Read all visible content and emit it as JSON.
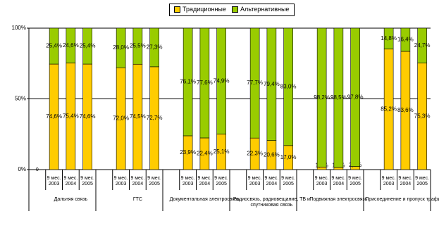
{
  "chart_data": {
    "type": "stacked_bar_percent",
    "categories": [
      "0",
      "9 мес. 2003",
      "9 мес. 2004",
      "9 мес. 2005",
      null,
      "9 мес. 2003",
      "9 мес. 2004",
      "9 мес. 2005",
      null,
      "9 мес. 2003",
      "9 мес. 2004",
      "9 мес. 2005",
      null,
      "9 мес. 2003",
      "9 мес. 2004",
      "9 мес. 2005",
      null,
      "9 мес. 2003",
      "9 мес. 2004",
      "9 мес. 2005",
      null,
      "9 мес. 2003",
      "9 мес. 2004",
      "9 мес. 2005"
    ],
    "groups": [
      "Дальняя связь",
      "ГТС",
      "Документальная электросвязь",
      "Радиосвязь, радиовещание, ТВ и спутниковая связь",
      "Подвижная электросвязь",
      "Присоединение и пропуск трафика"
    ],
    "series": [
      {
        "name": "Традиционные",
        "color": "#ffcc00",
        "values": [
          null,
          74.6,
          75.4,
          74.6,
          null,
          72.0,
          74.5,
          72.7,
          null,
          23.9,
          22.4,
          25.1,
          null,
          22.3,
          20.6,
          17.0,
          null,
          1.8,
          1.5,
          2.2,
          null,
          85.2,
          83.6,
          75.3
        ],
        "value_labels": [
          null,
          "74,6%",
          "75,4%",
          "74,6%",
          null,
          "72,0%",
          "74,5%",
          "72,7%",
          null,
          "23,9%",
          "22,4%",
          "25,1%",
          null,
          "22,3%",
          "20,6%",
          "17,0%",
          null,
          "1,8%",
          "1,5%",
          "2,2%",
          null,
          "85,2%",
          "83,6%",
          "75,3%"
        ]
      },
      {
        "name": "Альтернативные",
        "color": "#99cc00",
        "values": [
          null,
          25.4,
          24.6,
          25.4,
          null,
          28.0,
          25.5,
          27.3,
          null,
          76.1,
          77.6,
          74.9,
          null,
          77.7,
          79.4,
          83.0,
          null,
          98.2,
          98.5,
          97.8,
          null,
          14.8,
          16.4,
          24.7
        ],
        "value_labels": [
          null,
          "25,4%",
          "24,6%",
          "25,4%",
          null,
          "28,0%",
          "25,5%",
          "27,3%",
          null,
          "76,1%",
          "77,6%",
          "74,9%",
          null,
          "77,7%",
          "79,4%",
          "83,0%",
          null,
          "98,2%",
          "98,5%",
          "97,8%",
          null,
          "14,8%",
          "16,4%",
          "24,7%"
        ]
      }
    ],
    "ylim": [
      0,
      100
    ],
    "yticks": [
      {
        "value": 0,
        "label": "0%"
      },
      {
        "value": 50,
        "label": "50%"
      },
      {
        "value": 100,
        "label": "100%"
      }
    ],
    "grid": true,
    "legend": "top"
  }
}
